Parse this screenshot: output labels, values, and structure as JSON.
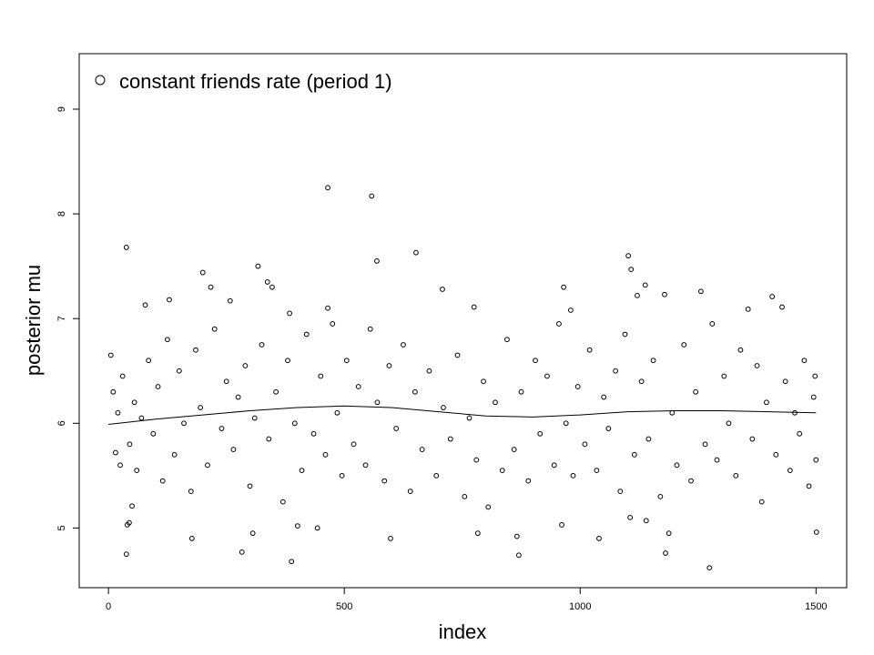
{
  "chart_data": {
    "type": "scatter",
    "title": "",
    "xlabel": "index",
    "ylabel": "posterior mu",
    "xlim": [
      -62,
      1565
    ],
    "ylim": [
      4.43,
      9.53
    ],
    "xticks": [
      0,
      500,
      1000,
      1500
    ],
    "yticks": [
      5,
      6,
      7,
      8,
      9
    ],
    "xtick_labels": [
      "0",
      "500",
      "1000",
      "1500"
    ],
    "ytick_labels": [
      "5",
      "6",
      "7",
      "8",
      "9"
    ],
    "grid": false,
    "legend": {
      "placement": "top-left",
      "entries": [
        {
          "label": "constant friends rate (period 1)",
          "marker": "open-circle"
        }
      ]
    },
    "colors": {
      "points": "#000000",
      "trend": "#000000",
      "background": "#ffffff"
    },
    "series": [
      {
        "name": "constant friends rate (period 1)",
        "marker": "open-circle",
        "points": [
          [
            465,
            8.25
          ],
          [
            558,
            8.17
          ],
          [
            38,
            7.68
          ],
          [
            652,
            7.63
          ],
          [
            1102,
            7.6
          ],
          [
            569,
            7.55
          ],
          [
            200,
            7.44
          ],
          [
            317,
            7.5
          ],
          [
            1108,
            7.47
          ],
          [
            1256,
            7.26
          ],
          [
            217,
            7.3
          ],
          [
            337,
            7.35
          ],
          [
            347,
            7.3
          ],
          [
            708,
            7.28
          ],
          [
            965,
            7.3
          ],
          [
            1121,
            7.22
          ],
          [
            1138,
            7.32
          ],
          [
            1179,
            7.23
          ],
          [
            1407,
            7.21
          ],
          [
            258,
            7.17
          ],
          [
            129,
            7.18
          ],
          [
            78,
            7.13
          ],
          [
            465,
            7.1
          ],
          [
            775,
            7.11
          ],
          [
            1356,
            7.09
          ],
          [
            1428,
            7.11
          ],
          [
            384,
            7.05
          ],
          [
            980,
            7.08
          ],
          [
            388,
            4.68
          ],
          [
            1274,
            4.62
          ],
          [
            870,
            4.74
          ],
          [
            38,
            4.75
          ],
          [
            1181,
            4.76
          ],
          [
            283,
            4.77
          ],
          [
            598,
            4.9
          ],
          [
            177,
            4.9
          ],
          [
            1501,
            4.96
          ],
          [
            1040,
            4.9
          ],
          [
            866,
            4.92
          ],
          [
            306,
            4.95
          ],
          [
            783,
            4.95
          ],
          [
            961,
            5.03
          ],
          [
            40,
            5.03
          ],
          [
            1140,
            5.07
          ],
          [
            443,
            5.0
          ],
          [
            401,
            5.02
          ],
          [
            1188,
            4.95
          ],
          [
            1106,
            5.1
          ],
          [
            44,
            5.05
          ],
          [
            50,
            5.21
          ],
          [
            5,
            6.65
          ],
          [
            10,
            6.3
          ],
          [
            15,
            5.72
          ],
          [
            20,
            6.1
          ],
          [
            25,
            5.6
          ],
          [
            30,
            6.45
          ],
          [
            45,
            5.8
          ],
          [
            55,
            6.2
          ],
          [
            60,
            5.55
          ],
          [
            70,
            6.05
          ],
          [
            85,
            6.6
          ],
          [
            95,
            5.9
          ],
          [
            105,
            6.35
          ],
          [
            115,
            5.45
          ],
          [
            125,
            6.8
          ],
          [
            140,
            5.7
          ],
          [
            150,
            6.5
          ],
          [
            160,
            6.0
          ],
          [
            175,
            5.35
          ],
          [
            185,
            6.7
          ],
          [
            195,
            6.15
          ],
          [
            210,
            5.6
          ],
          [
            225,
            6.9
          ],
          [
            240,
            5.95
          ],
          [
            250,
            6.4
          ],
          [
            265,
            5.75
          ],
          [
            275,
            6.25
          ],
          [
            290,
            6.55
          ],
          [
            300,
            5.4
          ],
          [
            310,
            6.05
          ],
          [
            325,
            6.75
          ],
          [
            340,
            5.85
          ],
          [
            355,
            6.3
          ],
          [
            370,
            5.25
          ],
          [
            380,
            6.6
          ],
          [
            395,
            6.0
          ],
          [
            410,
            5.55
          ],
          [
            420,
            6.85
          ],
          [
            435,
            5.9
          ],
          [
            450,
            6.45
          ],
          [
            460,
            5.7
          ],
          [
            475,
            6.95
          ],
          [
            485,
            6.1
          ],
          [
            495,
            5.5
          ],
          [
            505,
            6.6
          ],
          [
            520,
            5.8
          ],
          [
            530,
            6.35
          ],
          [
            545,
            5.6
          ],
          [
            555,
            6.9
          ],
          [
            570,
            6.2
          ],
          [
            585,
            5.45
          ],
          [
            595,
            6.55
          ],
          [
            610,
            5.95
          ],
          [
            625,
            6.75
          ],
          [
            640,
            5.35
          ],
          [
            650,
            6.3
          ],
          [
            665,
            5.75
          ],
          [
            680,
            6.5
          ],
          [
            695,
            5.5
          ],
          [
            710,
            6.15
          ],
          [
            725,
            5.85
          ],
          [
            740,
            6.65
          ],
          [
            755,
            5.3
          ],
          [
            765,
            6.05
          ],
          [
            780,
            5.65
          ],
          [
            795,
            6.4
          ],
          [
            805,
            5.2
          ],
          [
            820,
            6.2
          ],
          [
            835,
            5.55
          ],
          [
            845,
            6.8
          ],
          [
            860,
            5.75
          ],
          [
            875,
            6.3
          ],
          [
            890,
            5.45
          ],
          [
            905,
            6.6
          ],
          [
            915,
            5.9
          ],
          [
            930,
            6.45
          ],
          [
            945,
            5.6
          ],
          [
            955,
            6.95
          ],
          [
            970,
            6.0
          ],
          [
            985,
            5.5
          ],
          [
            995,
            6.35
          ],
          [
            1010,
            5.8
          ],
          [
            1020,
            6.7
          ],
          [
            1035,
            5.55
          ],
          [
            1050,
            6.25
          ],
          [
            1060,
            5.95
          ],
          [
            1075,
            6.5
          ],
          [
            1085,
            5.35
          ],
          [
            1095,
            6.85
          ],
          [
            1115,
            5.7
          ],
          [
            1130,
            6.4
          ],
          [
            1145,
            5.85
          ],
          [
            1155,
            6.6
          ],
          [
            1170,
            5.3
          ],
          [
            1195,
            6.1
          ],
          [
            1205,
            5.6
          ],
          [
            1220,
            6.75
          ],
          [
            1235,
            5.45
          ],
          [
            1245,
            6.3
          ],
          [
            1265,
            5.8
          ],
          [
            1280,
            6.95
          ],
          [
            1290,
            5.65
          ],
          [
            1305,
            6.45
          ],
          [
            1315,
            6.0
          ],
          [
            1330,
            5.5
          ],
          [
            1340,
            6.7
          ],
          [
            1365,
            5.85
          ],
          [
            1375,
            6.55
          ],
          [
            1385,
            5.25
          ],
          [
            1395,
            6.2
          ],
          [
            1415,
            5.7
          ],
          [
            1435,
            6.4
          ],
          [
            1445,
            5.55
          ],
          [
            1455,
            6.1
          ],
          [
            1465,
            5.9
          ],
          [
            1475,
            6.6
          ],
          [
            1485,
            5.4
          ],
          [
            1495,
            6.25
          ],
          [
            1500,
            5.65
          ],
          [
            1498,
            6.45
          ]
        ]
      }
    ],
    "trend_line": {
      "x": [
        0,
        100,
        200,
        300,
        400,
        500,
        600,
        700,
        800,
        900,
        1000,
        1100,
        1200,
        1300,
        1400,
        1500
      ],
      "y": [
        5.99,
        6.04,
        6.08,
        6.12,
        6.15,
        6.165,
        6.15,
        6.11,
        6.07,
        6.06,
        6.08,
        6.11,
        6.12,
        6.12,
        6.11,
        6.1
      ]
    }
  }
}
